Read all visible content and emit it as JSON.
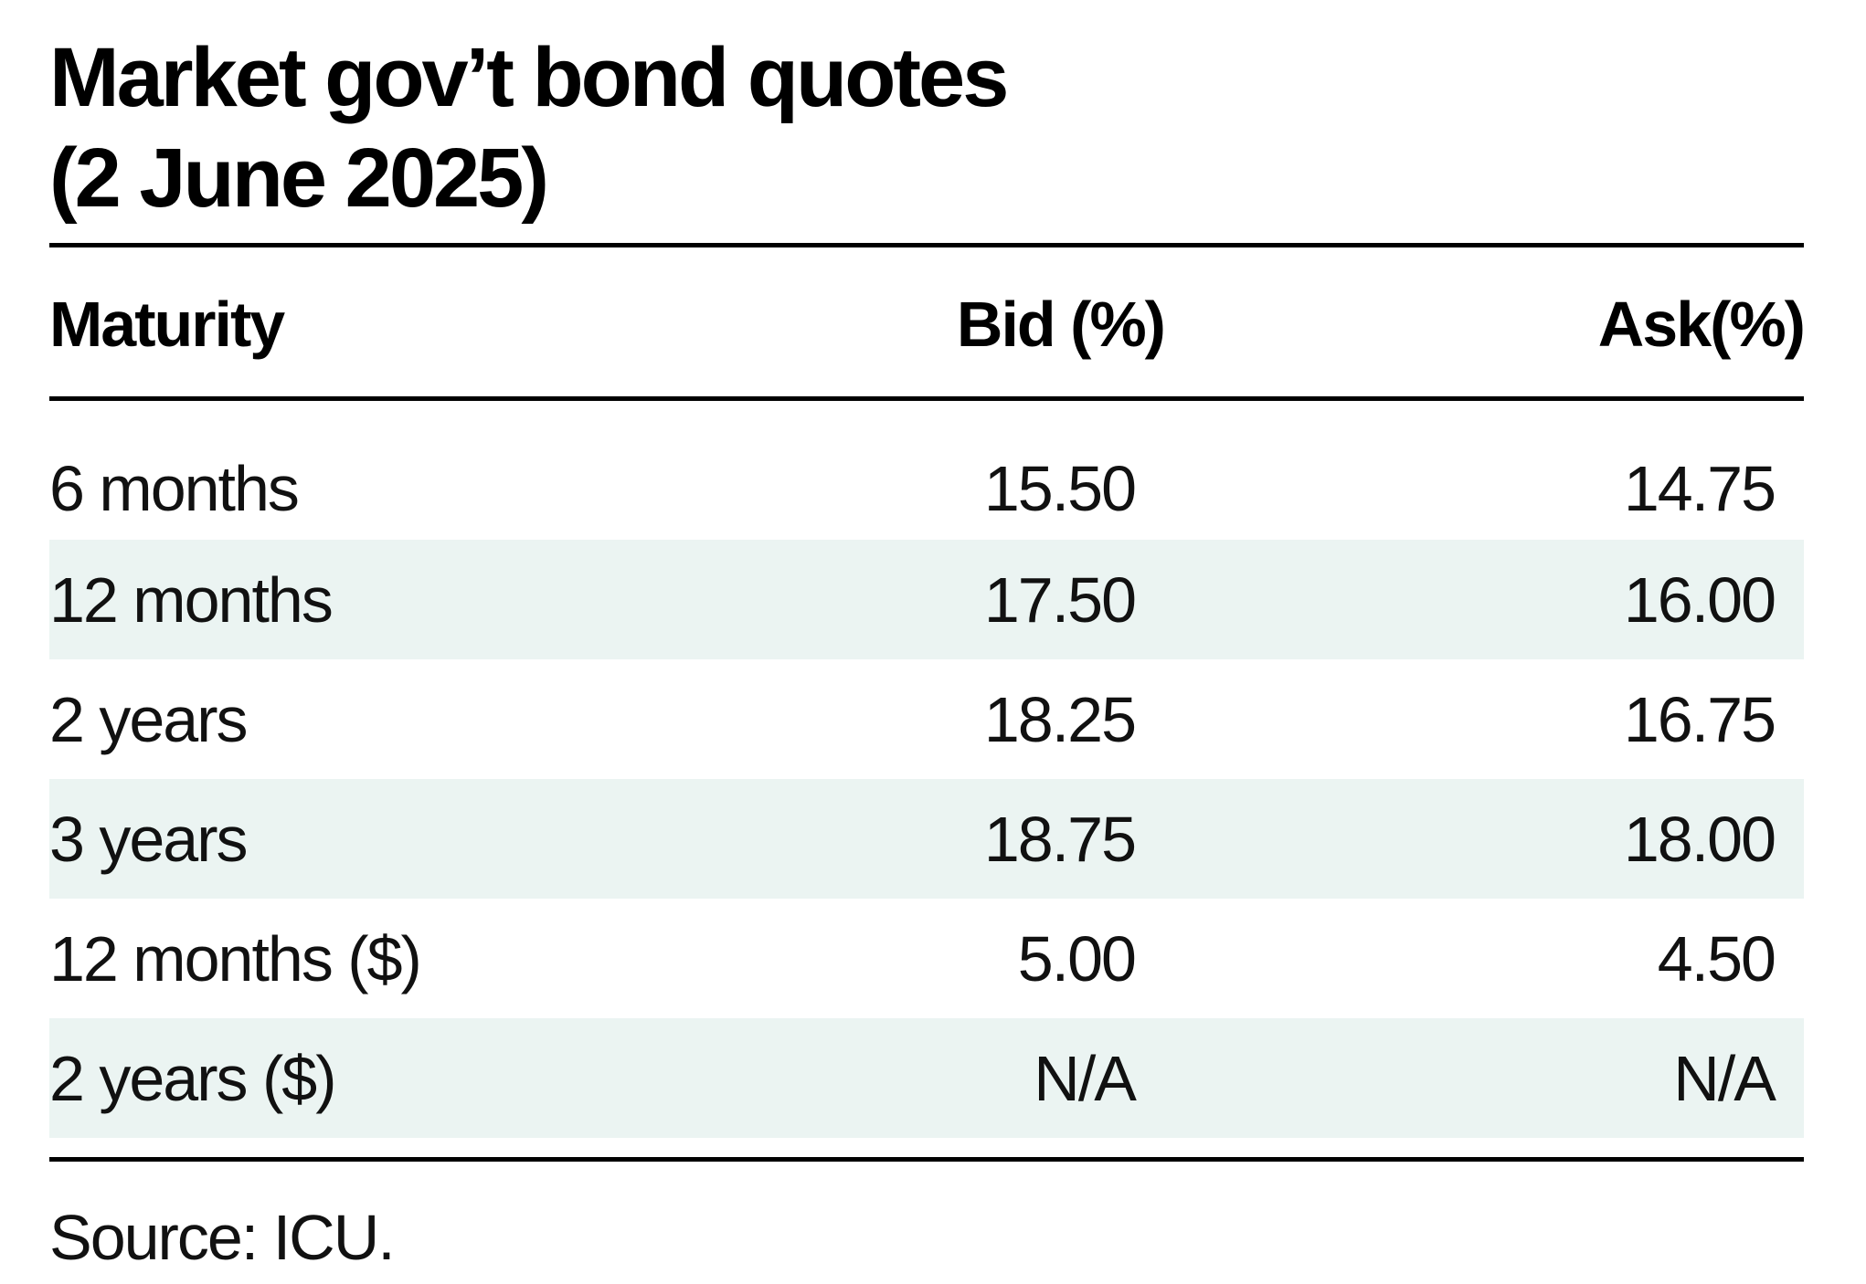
{
  "title_line1": "Market gov’t bond quotes",
  "title_line2": "(2 June 2025)",
  "source": "Source: ICU.",
  "colors": {
    "text": "#111111",
    "rule": "#000000",
    "row_shade": "#ebf4f2"
  },
  "chart_data": {
    "type": "table",
    "title": "Market gov’t bond quotes (2 June 2025)",
    "columns": [
      "Maturity",
      "Bid (%)",
      "Ask(%)"
    ],
    "rows": [
      [
        "6 months",
        "15.50",
        "14.75"
      ],
      [
        "12 months",
        "17.50",
        "16.00"
      ],
      [
        "2 years",
        "18.25",
        "16.75"
      ],
      [
        "3 years",
        "18.75",
        "18.00"
      ],
      [
        "12 months ($)",
        "5.00",
        "4.50"
      ],
      [
        "2 years ($)",
        "N/A",
        "N/A"
      ]
    ]
  }
}
